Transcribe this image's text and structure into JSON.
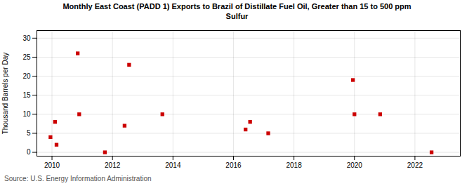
{
  "chart_data": {
    "type": "scatter",
    "title": "Monthly East Coast (PADD 1) Exports to Brazil of Distillate Fuel Oil, Greater than 15 to 500 ppm\nSulfur",
    "y_label": "Thousand Barrels per Day",
    "caption": "Source: U.S. Energy Information Administration",
    "x": [
      2009.95,
      2010.1,
      2010.15,
      2010.85,
      2010.9,
      2011.75,
      2012.4,
      2012.55,
      2013.65,
      2016.4,
      2016.55,
      2017.15,
      2019.95,
      2020.0,
      2020.85,
      2022.55
    ],
    "values": [
      4,
      8,
      2,
      26,
      10,
      0,
      7,
      23,
      10,
      6,
      8,
      5,
      19,
      10,
      10,
      0
    ],
    "color": "#cc0000",
    "marker": "square",
    "xlim": [
      2009.5,
      2023.5
    ],
    "ylim": [
      -1,
      32
    ],
    "xticks": [
      2010,
      2012,
      2014,
      2016,
      2018,
      2020,
      2022
    ],
    "yticks": [
      0,
      5,
      10,
      15,
      20,
      25,
      30
    ],
    "grid": true
  }
}
